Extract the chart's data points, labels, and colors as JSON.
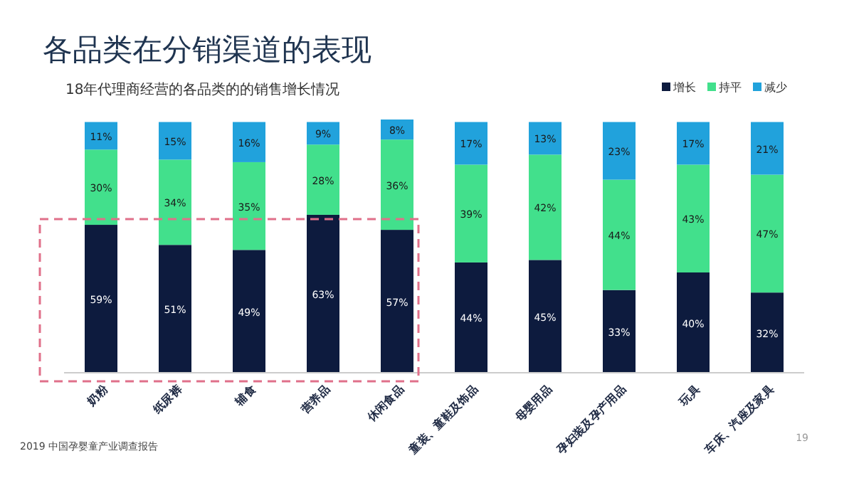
{
  "chart_data": {
    "type": "bar",
    "stacked": true,
    "title": "各品类在分销渠道的表现",
    "subtitle": "18年代理商经营的各品类的的销售增长情况",
    "categories": [
      "奶粉",
      "纸尿裤",
      "辅食",
      "营养品",
      "休闲食品",
      "童装、童鞋及饰品",
      "母婴用品",
      "孕妇装及孕产用品",
      "玩具",
      "车床、汽座及家具"
    ],
    "series": [
      {
        "name": "增长",
        "color": "#0d1b3e",
        "values": [
          59,
          51,
          49,
          63,
          57,
          44,
          45,
          33,
          40,
          32
        ],
        "value_labels": [
          "59%",
          "51%",
          "49%",
          "63%",
          "57%",
          "44%",
          "45%",
          "33%",
          "40%",
          "32%"
        ]
      },
      {
        "name": "持平",
        "color": "#42e08c",
        "values": [
          30,
          34,
          35,
          28,
          36,
          39,
          42,
          44,
          43,
          47
        ],
        "value_labels": [
          "30%",
          "34%",
          "35%",
          "28%",
          "36%",
          "39%",
          "42%",
          "44%",
          "43%",
          "47%"
        ]
      },
      {
        "name": "减少",
        "color": "#21a2dc",
        "values": [
          11,
          15,
          16,
          9,
          8,
          17,
          13,
          23,
          17,
          21
        ],
        "value_labels": [
          "11%",
          "15%",
          "16%",
          "9%",
          "8%",
          "17%",
          "13%",
          "23%",
          "17%",
          "21%"
        ]
      }
    ],
    "legend": "top right",
    "annotations": [
      "2019 中国孕婴童产业调查报告",
      "19"
    ]
  }
}
